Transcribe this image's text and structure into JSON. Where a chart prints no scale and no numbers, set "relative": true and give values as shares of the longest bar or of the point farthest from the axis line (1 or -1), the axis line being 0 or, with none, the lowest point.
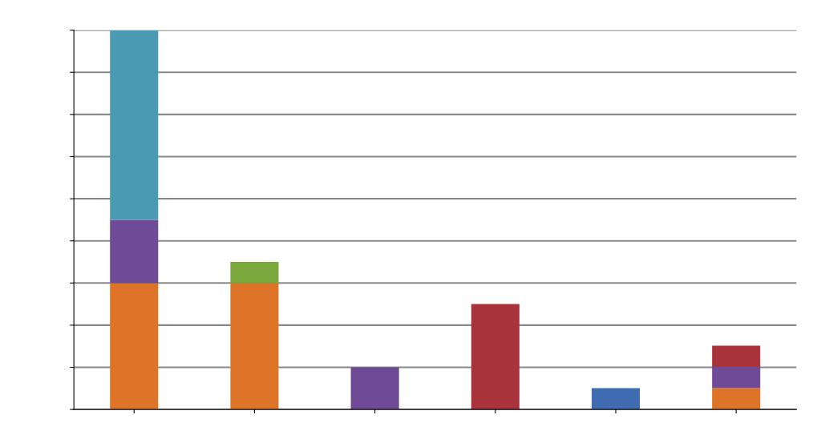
{
  "chart_data": {
    "type": "bar",
    "stacked": true,
    "relative": true,
    "grid": "y",
    "legend": false,
    "tick_labels": false,
    "categories": [
      null,
      null,
      null,
      null,
      null,
      null
    ],
    "series": [
      {
        "color": "#dd7428",
        "values": [
          0.333,
          0.333,
          null,
          null,
          null,
          0.056
        ]
      },
      {
        "color": "#6f4a96",
        "values": [
          0.167,
          null,
          0.111,
          null,
          null,
          0.056
        ]
      },
      {
        "color": "#4a9ab4",
        "values": [
          0.5,
          null,
          null,
          null,
          null,
          null
        ]
      },
      {
        "color": "#7ba83a",
        "values": [
          null,
          0.056,
          null,
          null,
          null,
          null
        ]
      },
      {
        "color": "#a9333b",
        "values": [
          null,
          null,
          null,
          0.278,
          null,
          0.056
        ]
      },
      {
        "color": "#3f6bb0",
        "values": [
          null,
          null,
          null,
          null,
          0.056,
          null
        ]
      }
    ]
  }
}
